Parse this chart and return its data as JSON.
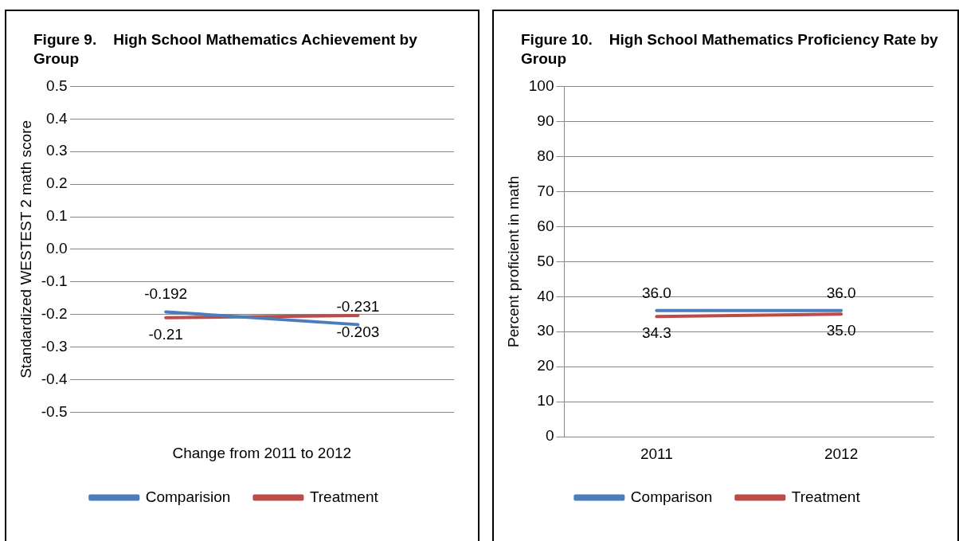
{
  "chart_data": [
    {
      "type": "line",
      "title": "Figure 9.    High School Mathematics Achievement by Group",
      "xlabel": "Change from 2011 to 2012",
      "ylabel": "Standardized WESTEST 2 math score",
      "categories": [
        null,
        null
      ],
      "series": [
        {
          "name": "Comparision",
          "color": "#4a7ebb",
          "values": [
            -0.192,
            -0.231
          ],
          "value_labels": [
            "-0.192",
            "-0.231"
          ]
        },
        {
          "name": "Treatment",
          "color": "#be4b48",
          "values": [
            -0.21,
            -0.203
          ],
          "value_labels": [
            "-0.21",
            "-0.203"
          ]
        }
      ],
      "ylim": [
        -0.5,
        0.5
      ],
      "yticks": [
        {
          "value": -0.5,
          "label": "-0.5"
        },
        {
          "value": -0.4,
          "label": "-0.4"
        },
        {
          "value": -0.3,
          "label": "-0.3"
        },
        {
          "value": -0.2,
          "label": "-0.2"
        },
        {
          "value": -0.1,
          "label": "-0.1"
        },
        {
          "value": 0,
          "label": "0.0"
        },
        0.1,
        0.2,
        0.3,
        0.4,
        0.5
      ],
      "grid": "y",
      "legend": "bottom",
      "marker": "none",
      "data_labels": true
    },
    {
      "type": "line",
      "title": "Figure 10.    High School Mathematics Proficiency Rate by Group",
      "ylabel": "Percent proficient in math",
      "categories": [
        "2011",
        "2012"
      ],
      "series": [
        {
          "name": "Comparison",
          "color": "#4a7ebb",
          "values": [
            36.0,
            36.0
          ],
          "value_labels": [
            "36.0",
            "36.0"
          ]
        },
        {
          "name": "Treatment",
          "color": "#be4b48",
          "values": [
            34.3,
            35.0
          ],
          "value_labels": [
            "34.3",
            "35.0"
          ]
        }
      ],
      "ylim": [
        0,
        100
      ],
      "yticks": [
        0,
        10,
        20,
        30,
        40,
        50,
        60,
        70,
        80,
        90,
        100
      ],
      "grid": "y",
      "legend": "bottom",
      "marker": "none",
      "data_labels": true
    }
  ]
}
